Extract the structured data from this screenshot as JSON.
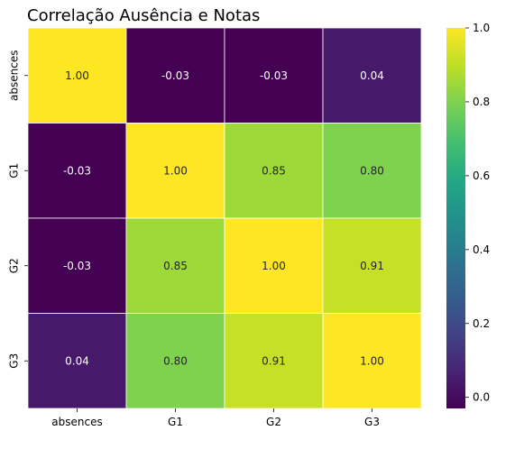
{
  "chart_data": {
    "type": "heatmap",
    "title": "Correlação Ausência e Notas",
    "xlabel": "",
    "ylabel": "",
    "x_categories": [
      "absences",
      "G1",
      "G2",
      "G3"
    ],
    "y_categories": [
      "absences",
      "G1",
      "G2",
      "G3"
    ],
    "values": [
      [
        1.0,
        -0.03,
        -0.03,
        0.04
      ],
      [
        -0.03,
        1.0,
        0.85,
        0.8
      ],
      [
        -0.03,
        0.85,
        1.0,
        0.91
      ],
      [
        0.04,
        0.8,
        0.91,
        1.0
      ]
    ],
    "annotations": [
      [
        "1.00",
        "-0.03",
        "-0.03",
        "0.04"
      ],
      [
        "-0.03",
        "1.00",
        "0.85",
        "0.80"
      ],
      [
        "-0.03",
        "0.85",
        "1.00",
        "0.91"
      ],
      [
        "0.04",
        "0.80",
        "0.91",
        "1.00"
      ]
    ],
    "colormap": "viridis",
    "vmin": -0.03,
    "vmax": 1.0,
    "colorbar_ticks": [
      "0.0",
      "0.2",
      "0.4",
      "0.6",
      "0.8",
      "1.0"
    ],
    "grid_lines": "white"
  }
}
